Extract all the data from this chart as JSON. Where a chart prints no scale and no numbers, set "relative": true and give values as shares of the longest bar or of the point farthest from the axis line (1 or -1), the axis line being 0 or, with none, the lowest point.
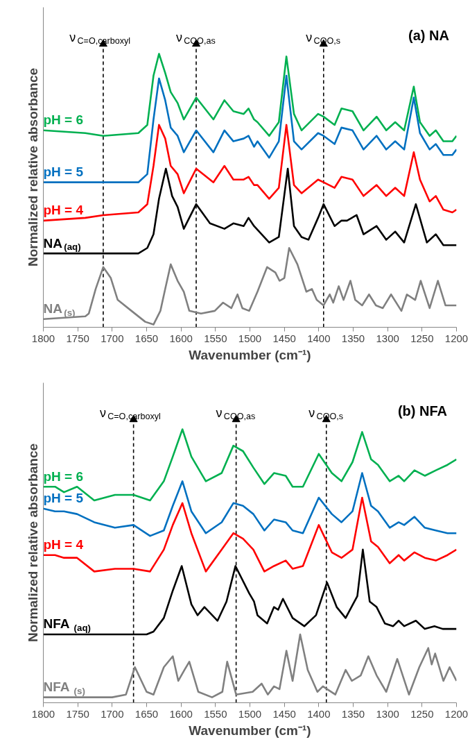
{
  "chart_data": [
    {
      "type": "line",
      "title": "(a) NA",
      "xlabel": "Wavenumber (cm⁻¹)",
      "ylabel": "Normalized relative absorbance",
      "relative": true,
      "xlim": [
        1800,
        1200
      ],
      "xticks": [
        1800,
        1750,
        1700,
        1650,
        1600,
        1550,
        1500,
        1450,
        1400,
        1350,
        1300,
        1250,
        1200
      ],
      "ref_lines": [
        {
          "axis": "x",
          "value": 1713,
          "label": "ν$_{C=O,carboxyl}$",
          "line_style": "dashed",
          "color": "#000000"
        },
        {
          "axis": "x",
          "value": 1578,
          "label": "ν$_{COO,as}$",
          "line_style": "dashed",
          "color": "#000000"
        },
        {
          "axis": "x",
          "value": 1393,
          "label": "ν$_{COO,s}$",
          "line_style": "dashed",
          "color": "#000000"
        }
      ],
      "series": [
        {
          "name": "pH = 6",
          "color": "#00b050",
          "x": [
            1800,
            1739,
            1713,
            1662,
            1649,
            1640,
            1632,
            1623,
            1615,
            1605,
            1596,
            1578,
            1553,
            1537,
            1524,
            1509,
            1502,
            1494,
            1489,
            1472,
            1458,
            1447,
            1436,
            1425,
            1401,
            1393,
            1377,
            1367,
            1351,
            1335,
            1316,
            1302,
            1289,
            1276,
            1262,
            1253,
            1239,
            1230,
            1219,
            1206,
            1200
          ],
          "values": [
            0.72,
            0.71,
            0.7,
            0.71,
            0.74,
            0.92,
            1.0,
            0.93,
            0.86,
            0.82,
            0.76,
            0.84,
            0.76,
            0.83,
            0.79,
            0.78,
            0.8,
            0.76,
            0.75,
            0.7,
            0.75,
            0.99,
            0.78,
            0.72,
            0.78,
            0.77,
            0.74,
            0.8,
            0.79,
            0.72,
            0.77,
            0.72,
            0.75,
            0.72,
            0.88,
            0.75,
            0.7,
            0.72,
            0.68,
            0.68,
            0.7
          ]
        },
        {
          "name": "pH = 5",
          "color": "#0070c0",
          "x": [
            1800,
            1739,
            1713,
            1662,
            1649,
            1640,
            1632,
            1623,
            1615,
            1605,
            1596,
            1578,
            1553,
            1537,
            1524,
            1509,
            1502,
            1494,
            1489,
            1472,
            1458,
            1447,
            1436,
            1425,
            1401,
            1393,
            1377,
            1367,
            1351,
            1335,
            1316,
            1302,
            1289,
            1276,
            1262,
            1253,
            1239,
            1230,
            1219,
            1206,
            1200
          ],
          "values": [
            0.53,
            0.53,
            0.53,
            0.53,
            0.56,
            0.76,
            0.91,
            0.83,
            0.73,
            0.7,
            0.64,
            0.72,
            0.64,
            0.72,
            0.68,
            0.69,
            0.7,
            0.66,
            0.68,
            0.62,
            0.68,
            0.92,
            0.68,
            0.65,
            0.71,
            0.7,
            0.67,
            0.73,
            0.72,
            0.65,
            0.7,
            0.65,
            0.68,
            0.65,
            0.84,
            0.71,
            0.65,
            0.67,
            0.63,
            0.63,
            0.65
          ]
        },
        {
          "name": "pH = 4",
          "color": "#ff0000",
          "x": [
            1800,
            1739,
            1713,
            1662,
            1649,
            1640,
            1632,
            1623,
            1615,
            1605,
            1596,
            1578,
            1553,
            1537,
            1524,
            1509,
            1502,
            1494,
            1489,
            1472,
            1458,
            1447,
            1436,
            1425,
            1401,
            1393,
            1377,
            1367,
            1351,
            1335,
            1316,
            1302,
            1289,
            1276,
            1262,
            1253,
            1239,
            1230,
            1219,
            1206,
            1200
          ],
          "values": [
            0.39,
            0.4,
            0.41,
            0.42,
            0.45,
            0.59,
            0.74,
            0.69,
            0.59,
            0.56,
            0.49,
            0.58,
            0.53,
            0.59,
            0.54,
            0.54,
            0.55,
            0.52,
            0.52,
            0.47,
            0.51,
            0.74,
            0.52,
            0.49,
            0.54,
            0.53,
            0.51,
            0.55,
            0.54,
            0.48,
            0.52,
            0.48,
            0.51,
            0.48,
            0.64,
            0.54,
            0.46,
            0.48,
            0.43,
            0.42,
            0.43
          ]
        },
        {
          "name": "NA$_{(aq)}$",
          "color": "#000000",
          "x": [
            1800,
            1713,
            1662,
            1649,
            1640,
            1632,
            1622,
            1613,
            1605,
            1596,
            1578,
            1558,
            1537,
            1524,
            1509,
            1502,
            1494,
            1472,
            1458,
            1445,
            1436,
            1425,
            1415,
            1401,
            1393,
            1377,
            1367,
            1359,
            1345,
            1335,
            1316,
            1302,
            1289,
            1276,
            1259,
            1243,
            1230,
            1219,
            1200
          ],
          "values": [
            0.27,
            0.27,
            0.27,
            0.29,
            0.34,
            0.47,
            0.58,
            0.48,
            0.44,
            0.36,
            0.45,
            0.38,
            0.36,
            0.38,
            0.37,
            0.4,
            0.37,
            0.31,
            0.33,
            0.58,
            0.37,
            0.33,
            0.32,
            0.4,
            0.45,
            0.37,
            0.39,
            0.39,
            0.41,
            0.34,
            0.37,
            0.32,
            0.35,
            0.31,
            0.45,
            0.31,
            0.34,
            0.3,
            0.3
          ]
        },
        {
          "name": "NA$_{(s)}$",
          "color": "#808080",
          "x": [
            1800,
            1739,
            1734,
            1724,
            1713,
            1702,
            1692,
            1672,
            1652,
            1640,
            1630,
            1623,
            1615,
            1605,
            1596,
            1588,
            1571,
            1551,
            1539,
            1527,
            1518,
            1511,
            1501,
            1489,
            1475,
            1463,
            1457,
            1450,
            1443,
            1431,
            1418,
            1410,
            1403,
            1393,
            1384,
            1379,
            1371,
            1364,
            1354,
            1347,
            1337,
            1327,
            1317,
            1307,
            1295,
            1280,
            1272,
            1260,
            1252,
            1239,
            1227,
            1216,
            1200
          ],
          "values": [
            0.03,
            0.04,
            0.05,
            0.14,
            0.22,
            0.18,
            0.1,
            0.06,
            0.02,
            0.01,
            0.06,
            0.14,
            0.23,
            0.17,
            0.13,
            0.06,
            0.05,
            0.06,
            0.09,
            0.07,
            0.12,
            0.07,
            0.06,
            0.13,
            0.22,
            0.2,
            0.17,
            0.18,
            0.29,
            0.23,
            0.13,
            0.14,
            0.1,
            0.08,
            0.12,
            0.09,
            0.15,
            0.1,
            0.17,
            0.1,
            0.08,
            0.12,
            0.08,
            0.07,
            0.12,
            0.06,
            0.12,
            0.1,
            0.17,
            0.07,
            0.17,
            0.08,
            0.08
          ]
        }
      ]
    },
    {
      "type": "line",
      "title": "(b) NFA",
      "xlabel": "Wavenumber (cm⁻¹)",
      "ylabel": "Normalized relative absorbance",
      "relative": true,
      "xlim": [
        1800,
        1200
      ],
      "xticks": [
        1800,
        1750,
        1700,
        1650,
        1600,
        1550,
        1500,
        1450,
        1400,
        1350,
        1300,
        1250,
        1200
      ],
      "ref_lines": [
        {
          "axis": "x",
          "value": 1669,
          "label": "ν$_{C=O,carboxyl}$",
          "line_style": "dashed",
          "color": "#000000"
        },
        {
          "axis": "x",
          "value": 1520,
          "label": "ν$_{COO,as}$",
          "line_style": "dashed",
          "color": "#000000"
        },
        {
          "axis": "x",
          "value": 1389,
          "label": "ν$_{COO,s}$",
          "line_style": "dashed",
          "color": "#000000"
        }
      ],
      "series": [
        {
          "name": "pH = 6",
          "color": "#00b050",
          "x": [
            1800,
            1783,
            1770,
            1751,
            1726,
            1696,
            1669,
            1645,
            1625,
            1612,
            1598,
            1585,
            1564,
            1541,
            1524,
            1510,
            1495,
            1479,
            1465,
            1448,
            1438,
            1423,
            1400,
            1381,
            1367,
            1351,
            1337,
            1324,
            1314,
            1297,
            1284,
            1276,
            1261,
            1246,
            1230,
            1213,
            1200
          ],
          "values": [
            0.79,
            0.79,
            0.77,
            0.79,
            0.74,
            0.76,
            0.76,
            0.74,
            0.81,
            0.9,
            1.0,
            0.9,
            0.81,
            0.84,
            0.94,
            0.92,
            0.86,
            0.8,
            0.84,
            0.83,
            0.79,
            0.79,
            0.91,
            0.84,
            0.81,
            0.88,
            0.99,
            0.89,
            0.87,
            0.81,
            0.83,
            0.81,
            0.85,
            0.83,
            0.85,
            0.87,
            0.89
          ]
        },
        {
          "name": "pH = 5",
          "color": "#0070c0",
          "x": [
            1800,
            1783,
            1770,
            1751,
            1726,
            1696,
            1669,
            1645,
            1625,
            1612,
            1598,
            1585,
            1564,
            1541,
            1524,
            1510,
            1495,
            1479,
            1465,
            1448,
            1438,
            1423,
            1400,
            1381,
            1367,
            1351,
            1337,
            1324,
            1314,
            1297,
            1284,
            1276,
            1261,
            1246,
            1230,
            1213,
            1200
          ],
          "values": [
            0.71,
            0.7,
            0.7,
            0.69,
            0.66,
            0.64,
            0.65,
            0.61,
            0.63,
            0.72,
            0.81,
            0.7,
            0.62,
            0.66,
            0.73,
            0.72,
            0.69,
            0.63,
            0.67,
            0.66,
            0.63,
            0.62,
            0.75,
            0.69,
            0.66,
            0.7,
            0.84,
            0.72,
            0.7,
            0.64,
            0.66,
            0.65,
            0.68,
            0.64,
            0.63,
            0.62,
            0.62
          ]
        },
        {
          "name": "pH = 4",
          "color": "#ff0000",
          "x": [
            1800,
            1783,
            1770,
            1751,
            1726,
            1696,
            1669,
            1645,
            1625,
            1612,
            1598,
            1585,
            1564,
            1541,
            1524,
            1510,
            1495,
            1479,
            1465,
            1448,
            1438,
            1423,
            1400,
            1381,
            1367,
            1351,
            1337,
            1324,
            1314,
            1297,
            1284,
            1276,
            1261,
            1246,
            1230,
            1213,
            1200
          ],
          "values": [
            0.54,
            0.54,
            0.53,
            0.53,
            0.48,
            0.49,
            0.49,
            0.48,
            0.56,
            0.65,
            0.73,
            0.62,
            0.48,
            0.56,
            0.62,
            0.6,
            0.56,
            0.48,
            0.5,
            0.52,
            0.49,
            0.5,
            0.65,
            0.55,
            0.53,
            0.56,
            0.75,
            0.59,
            0.57,
            0.51,
            0.54,
            0.52,
            0.55,
            0.53,
            0.52,
            0.54,
            0.56
          ]
        },
        {
          "name": "NFA$_{(aq)}$",
          "color": "#000000",
          "x": [
            1800,
            1700,
            1650,
            1640,
            1625,
            1612,
            1599,
            1585,
            1576,
            1566,
            1547,
            1534,
            1521,
            1509,
            1501,
            1494,
            1489,
            1475,
            1465,
            1459,
            1452,
            1438,
            1421,
            1404,
            1388,
            1374,
            1361,
            1344,
            1336,
            1326,
            1316,
            1304,
            1292,
            1284,
            1276,
            1259,
            1246,
            1232,
            1220,
            1200
          ],
          "values": [
            0.25,
            0.25,
            0.25,
            0.26,
            0.31,
            0.41,
            0.5,
            0.36,
            0.32,
            0.35,
            0.3,
            0.37,
            0.5,
            0.44,
            0.4,
            0.37,
            0.32,
            0.29,
            0.35,
            0.34,
            0.38,
            0.31,
            0.28,
            0.32,
            0.44,
            0.35,
            0.31,
            0.39,
            0.56,
            0.37,
            0.35,
            0.29,
            0.28,
            0.3,
            0.28,
            0.3,
            0.27,
            0.28,
            0.27,
            0.27
          ]
        },
        {
          "name": "NFA$_{(s)}$",
          "color": "#808080",
          "x": [
            1800,
            1700,
            1680,
            1667,
            1650,
            1640,
            1625,
            1612,
            1604,
            1595,
            1588,
            1575,
            1555,
            1540,
            1533,
            1520,
            1496,
            1483,
            1474,
            1465,
            1457,
            1447,
            1438,
            1427,
            1416,
            1402,
            1394,
            1376,
            1361,
            1352,
            1339,
            1328,
            1316,
            1302,
            1286,
            1269,
            1254,
            1241,
            1236,
            1231,
            1219,
            1210,
            1200
          ],
          "values": [
            0.02,
            0.02,
            0.03,
            0.13,
            0.04,
            0.03,
            0.13,
            0.17,
            0.08,
            0.12,
            0.15,
            0.04,
            0.02,
            0.04,
            0.15,
            0.03,
            0.04,
            0.07,
            0.03,
            0.06,
            0.05,
            0.19,
            0.08,
            0.25,
            0.12,
            0.04,
            0.06,
            0.03,
            0.12,
            0.08,
            0.1,
            0.17,
            0.1,
            0.04,
            0.16,
            0.03,
            0.13,
            0.2,
            0.14,
            0.18,
            0.08,
            0.13,
            0.08
          ]
        }
      ]
    }
  ]
}
